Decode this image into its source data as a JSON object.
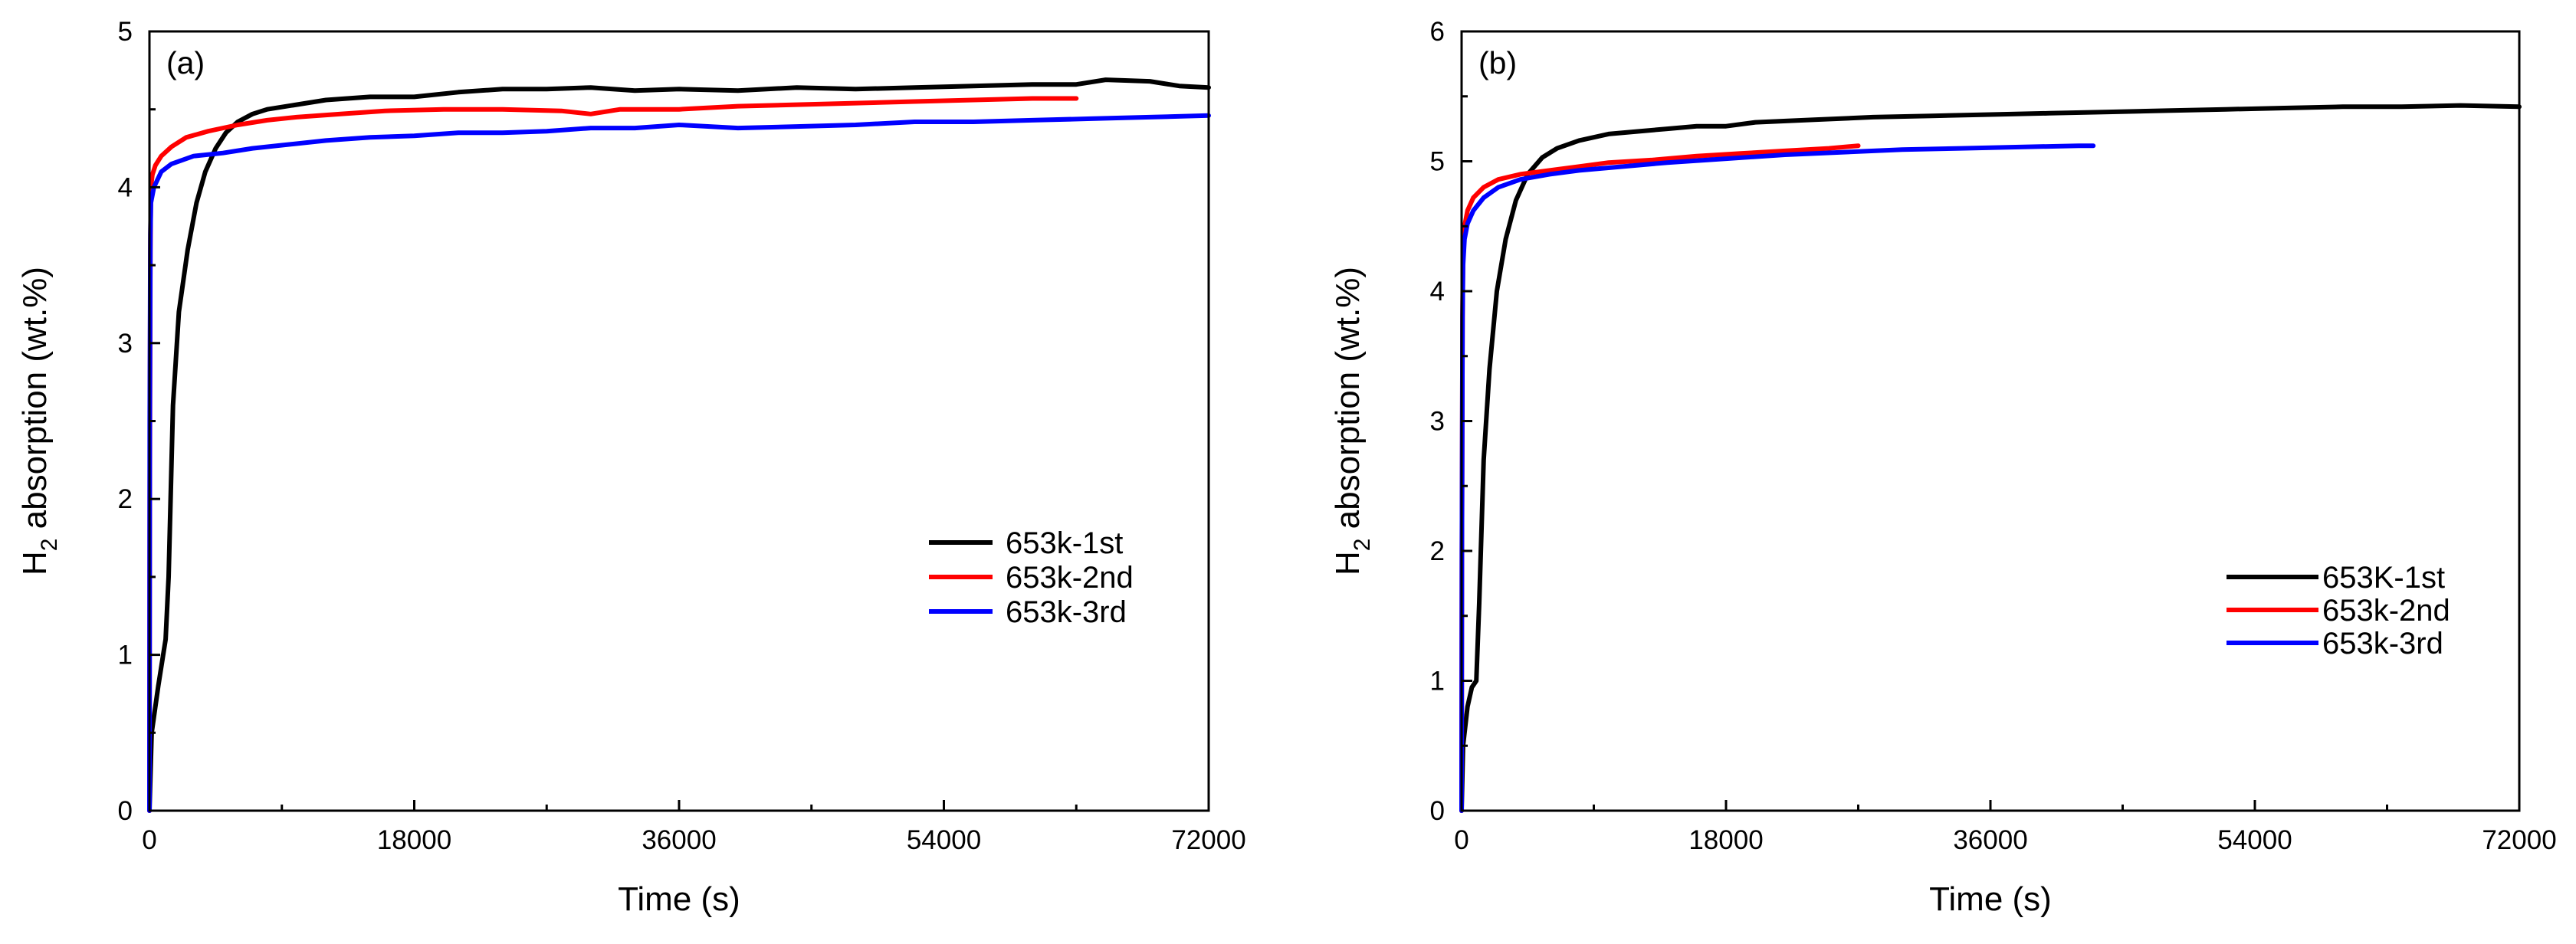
{
  "chart_data": [
    {
      "type": "line",
      "panel_label": "(a)",
      "xlabel": "Time (s)",
      "ylabel": "absorption (wt.%)",
      "ylabel_main": "H",
      "ylabel_sub": "2",
      "xlim": [
        0,
        72000
      ],
      "ylim": [
        0,
        5
      ],
      "xticks": [
        0,
        18000,
        36000,
        54000,
        72000
      ],
      "yticks": [
        0,
        1,
        2,
        3,
        4,
        5
      ],
      "legend_position": "center-right",
      "series": [
        {
          "name": "653k-1st",
          "color": "#000000",
          "x": [
            0,
            150,
            600,
            1100,
            1300,
            1600,
            2000,
            2600,
            3200,
            3800,
            4500,
            5200,
            6000,
            7000,
            8000,
            10000,
            12000,
            15000,
            18000,
            21000,
            24000,
            27000,
            30000,
            33000,
            36000,
            40000,
            44000,
            48000,
            52000,
            56000,
            60000,
            63000,
            65000,
            68000,
            70000,
            72000
          ],
          "y": [
            0,
            0.5,
            0.8,
            1.1,
            1.5,
            2.6,
            3.2,
            3.6,
            3.9,
            4.1,
            4.25,
            4.35,
            4.42,
            4.47,
            4.5,
            4.53,
            4.56,
            4.58,
            4.58,
            4.61,
            4.63,
            4.63,
            4.64,
            4.62,
            4.63,
            4.62,
            4.64,
            4.63,
            4.64,
            4.65,
            4.66,
            4.66,
            4.69,
            4.68,
            4.65,
            4.64
          ]
        },
        {
          "name": "653k-2nd",
          "color": "#ff0000",
          "x": [
            0,
            20,
            60,
            100,
            200,
            400,
            800,
            1500,
            2500,
            4000,
            6000,
            8000,
            10000,
            13000,
            16000,
            20000,
            24000,
            28000,
            30000,
            32000,
            36000,
            40000,
            44000,
            48000,
            52000,
            56000,
            60000,
            63000
          ],
          "y": [
            0,
            2.0,
            3.6,
            4.0,
            4.08,
            4.14,
            4.2,
            4.26,
            4.32,
            4.36,
            4.4,
            4.43,
            4.45,
            4.47,
            4.49,
            4.5,
            4.5,
            4.49,
            4.47,
            4.5,
            4.5,
            4.52,
            4.53,
            4.54,
            4.55,
            4.56,
            4.57,
            4.57
          ]
        },
        {
          "name": "653k-3rd",
          "color": "#0000ff",
          "x": [
            0,
            20,
            60,
            100,
            300,
            800,
            1500,
            3000,
            5000,
            7000,
            9000,
            12000,
            15000,
            18000,
            21000,
            24000,
            27000,
            30000,
            33000,
            36000,
            40000,
            44000,
            48000,
            52000,
            56000,
            60000,
            64000,
            68000,
            72000
          ],
          "y": [
            0,
            2.5,
            3.7,
            3.9,
            4.0,
            4.1,
            4.15,
            4.2,
            4.22,
            4.25,
            4.27,
            4.3,
            4.32,
            4.33,
            4.35,
            4.35,
            4.36,
            4.38,
            4.38,
            4.4,
            4.38,
            4.39,
            4.4,
            4.42,
            4.42,
            4.43,
            4.44,
            4.45,
            4.46
          ]
        }
      ]
    },
    {
      "type": "line",
      "panel_label": "(b)",
      "xlabel": "Time (s)",
      "ylabel": "absorption (wt.%)",
      "ylabel_main": "H",
      "ylabel_sub": "2",
      "xlim": [
        0,
        72000
      ],
      "ylim": [
        0,
        6
      ],
      "xticks": [
        0,
        18000,
        36000,
        54000,
        72000
      ],
      "yticks": [
        0,
        1,
        2,
        3,
        4,
        5,
        6
      ],
      "legend_position": "center-right",
      "series": [
        {
          "name": "653K-1st",
          "color": "#000000",
          "x": [
            0,
            100,
            400,
            700,
            1000,
            1200,
            1500,
            1900,
            2400,
            3000,
            3700,
            4500,
            5500,
            6500,
            8000,
            10000,
            12000,
            14000,
            16000,
            18000,
            20000,
            24000,
            28000,
            32000,
            36000,
            40000,
            44000,
            48000,
            52000,
            56000,
            60000,
            64000,
            68000,
            72000
          ],
          "y": [
            0,
            0.5,
            0.8,
            0.95,
            1.0,
            1.6,
            2.7,
            3.4,
            4.0,
            4.4,
            4.7,
            4.9,
            5.03,
            5.1,
            5.16,
            5.21,
            5.23,
            5.25,
            5.27,
            5.27,
            5.3,
            5.32,
            5.34,
            5.35,
            5.36,
            5.37,
            5.38,
            5.39,
            5.4,
            5.41,
            5.42,
            5.42,
            5.43,
            5.42
          ]
        },
        {
          "name": "653k-2nd",
          "color": "#ff0000",
          "x": [
            0,
            20,
            60,
            100,
            200,
            400,
            800,
            1500,
            2500,
            4000,
            6000,
            8000,
            10000,
            13000,
            16000,
            19000,
            22000,
            25000,
            27000
          ],
          "y": [
            0,
            2.0,
            3.8,
            4.3,
            4.5,
            4.62,
            4.72,
            4.8,
            4.86,
            4.9,
            4.93,
            4.96,
            4.99,
            5.01,
            5.04,
            5.06,
            5.08,
            5.1,
            5.12
          ]
        },
        {
          "name": "653k-3rd",
          "color": "#0000ff",
          "x": [
            0,
            20,
            60,
            100,
            200,
            400,
            800,
            1500,
            2500,
            4000,
            6000,
            8000,
            10000,
            14000,
            18000,
            22000,
            26000,
            30000,
            34000,
            38000,
            42000,
            43000
          ],
          "y": [
            0,
            2.0,
            3.8,
            4.2,
            4.4,
            4.52,
            4.62,
            4.72,
            4.8,
            4.86,
            4.9,
            4.93,
            4.95,
            4.99,
            5.02,
            5.05,
            5.07,
            5.09,
            5.1,
            5.11,
            5.12,
            5.12
          ]
        }
      ]
    }
  ]
}
